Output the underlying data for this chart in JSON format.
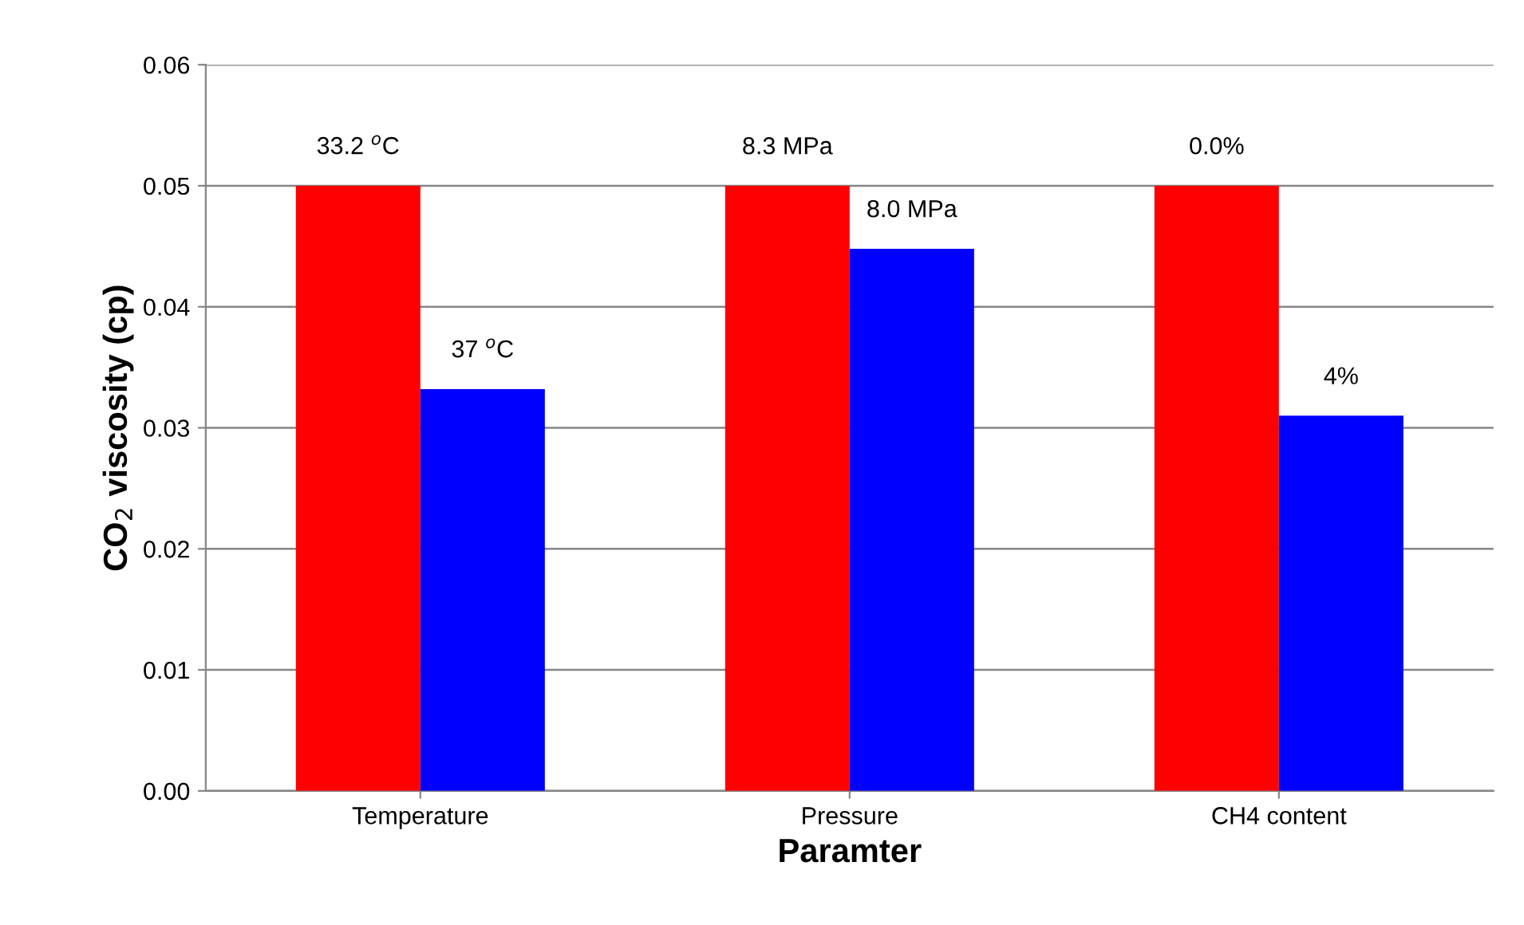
{
  "chart_data": {
    "type": "bar",
    "xlabel": "Paramter",
    "ylabel": "CO$_{2}$ viscosity (cp)",
    "categories": [
      "Temperature",
      "Pressure",
      "CH4 content"
    ],
    "series": [
      {
        "color": "#ff0000",
        "values": [
          0.05,
          0.05,
          0.05
        ]
      },
      {
        "color": "#0000ff",
        "values": [
          0.0332,
          0.0448,
          0.031
        ]
      }
    ],
    "annotations": [
      {
        "text": "33.2 $^{o}$C",
        "x": "Temperature",
        "y": 0.05
      },
      {
        "text": "8.3 MPa",
        "x": "Pressure",
        "y": 0.05
      },
      {
        "text": "0.0%",
        "x": "CH4 content",
        "y": 0.05
      },
      {
        "text": "37 $^{o}$C",
        "x": "Temperature",
        "y": 0.0332
      },
      {
        "text": "8.0 MPa",
        "x": "Pressure",
        "y": 0.0448
      },
      {
        "text": "4%",
        "x": "CH4 content",
        "y": 0.031
      }
    ],
    "ylim": [
      0,
      0.06
    ],
    "yticks": [
      {
        "value": 0,
        "label": "0.00"
      },
      {
        "value": 0.01,
        "label": "0.01"
      },
      {
        "value": 0.02,
        "label": "0.02"
      },
      {
        "value": 0.03,
        "label": "0.03"
      },
      {
        "value": 0.04,
        "label": "0.04"
      },
      {
        "value": 0.05,
        "label": "0.05"
      },
      {
        "value": 0.06,
        "label": "0.06"
      }
    ],
    "grid": "y",
    "legend": false
  }
}
